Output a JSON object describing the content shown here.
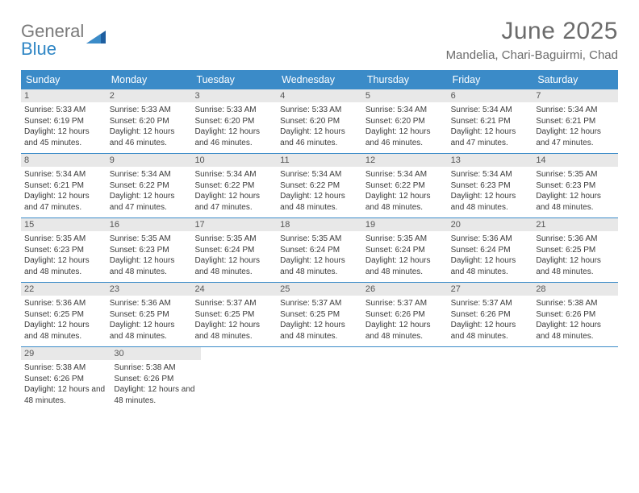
{
  "logo": {
    "general": "General",
    "blue": "Blue"
  },
  "title": "June 2025",
  "location": "Mandelia, Chari-Baguirmi, Chad",
  "dayHeaders": [
    "Sunday",
    "Monday",
    "Tuesday",
    "Wednesday",
    "Thursday",
    "Friday",
    "Saturday"
  ],
  "colors": {
    "accent": "#3b8bc8",
    "header_bg": "#3b8bc8",
    "daynum_bg": "#e8e8e8",
    "text": "#3a3a3a",
    "muted": "#6b6b6b",
    "background": "#ffffff"
  },
  "weeks": [
    [
      {
        "num": "1",
        "sunrise": "Sunrise: 5:33 AM",
        "sunset": "Sunset: 6:19 PM",
        "daylight": "Daylight: 12 hours and 45 minutes."
      },
      {
        "num": "2",
        "sunrise": "Sunrise: 5:33 AM",
        "sunset": "Sunset: 6:20 PM",
        "daylight": "Daylight: 12 hours and 46 minutes."
      },
      {
        "num": "3",
        "sunrise": "Sunrise: 5:33 AM",
        "sunset": "Sunset: 6:20 PM",
        "daylight": "Daylight: 12 hours and 46 minutes."
      },
      {
        "num": "4",
        "sunrise": "Sunrise: 5:33 AM",
        "sunset": "Sunset: 6:20 PM",
        "daylight": "Daylight: 12 hours and 46 minutes."
      },
      {
        "num": "5",
        "sunrise": "Sunrise: 5:34 AM",
        "sunset": "Sunset: 6:20 PM",
        "daylight": "Daylight: 12 hours and 46 minutes."
      },
      {
        "num": "6",
        "sunrise": "Sunrise: 5:34 AM",
        "sunset": "Sunset: 6:21 PM",
        "daylight": "Daylight: 12 hours and 47 minutes."
      },
      {
        "num": "7",
        "sunrise": "Sunrise: 5:34 AM",
        "sunset": "Sunset: 6:21 PM",
        "daylight": "Daylight: 12 hours and 47 minutes."
      }
    ],
    [
      {
        "num": "8",
        "sunrise": "Sunrise: 5:34 AM",
        "sunset": "Sunset: 6:21 PM",
        "daylight": "Daylight: 12 hours and 47 minutes."
      },
      {
        "num": "9",
        "sunrise": "Sunrise: 5:34 AM",
        "sunset": "Sunset: 6:22 PM",
        "daylight": "Daylight: 12 hours and 47 minutes."
      },
      {
        "num": "10",
        "sunrise": "Sunrise: 5:34 AM",
        "sunset": "Sunset: 6:22 PM",
        "daylight": "Daylight: 12 hours and 47 minutes."
      },
      {
        "num": "11",
        "sunrise": "Sunrise: 5:34 AM",
        "sunset": "Sunset: 6:22 PM",
        "daylight": "Daylight: 12 hours and 48 minutes."
      },
      {
        "num": "12",
        "sunrise": "Sunrise: 5:34 AM",
        "sunset": "Sunset: 6:22 PM",
        "daylight": "Daylight: 12 hours and 48 minutes."
      },
      {
        "num": "13",
        "sunrise": "Sunrise: 5:34 AM",
        "sunset": "Sunset: 6:23 PM",
        "daylight": "Daylight: 12 hours and 48 minutes."
      },
      {
        "num": "14",
        "sunrise": "Sunrise: 5:35 AM",
        "sunset": "Sunset: 6:23 PM",
        "daylight": "Daylight: 12 hours and 48 minutes."
      }
    ],
    [
      {
        "num": "15",
        "sunrise": "Sunrise: 5:35 AM",
        "sunset": "Sunset: 6:23 PM",
        "daylight": "Daylight: 12 hours and 48 minutes."
      },
      {
        "num": "16",
        "sunrise": "Sunrise: 5:35 AM",
        "sunset": "Sunset: 6:23 PM",
        "daylight": "Daylight: 12 hours and 48 minutes."
      },
      {
        "num": "17",
        "sunrise": "Sunrise: 5:35 AM",
        "sunset": "Sunset: 6:24 PM",
        "daylight": "Daylight: 12 hours and 48 minutes."
      },
      {
        "num": "18",
        "sunrise": "Sunrise: 5:35 AM",
        "sunset": "Sunset: 6:24 PM",
        "daylight": "Daylight: 12 hours and 48 minutes."
      },
      {
        "num": "19",
        "sunrise": "Sunrise: 5:35 AM",
        "sunset": "Sunset: 6:24 PM",
        "daylight": "Daylight: 12 hours and 48 minutes."
      },
      {
        "num": "20",
        "sunrise": "Sunrise: 5:36 AM",
        "sunset": "Sunset: 6:24 PM",
        "daylight": "Daylight: 12 hours and 48 minutes."
      },
      {
        "num": "21",
        "sunrise": "Sunrise: 5:36 AM",
        "sunset": "Sunset: 6:25 PM",
        "daylight": "Daylight: 12 hours and 48 minutes."
      }
    ],
    [
      {
        "num": "22",
        "sunrise": "Sunrise: 5:36 AM",
        "sunset": "Sunset: 6:25 PM",
        "daylight": "Daylight: 12 hours and 48 minutes."
      },
      {
        "num": "23",
        "sunrise": "Sunrise: 5:36 AM",
        "sunset": "Sunset: 6:25 PM",
        "daylight": "Daylight: 12 hours and 48 minutes."
      },
      {
        "num": "24",
        "sunrise": "Sunrise: 5:37 AM",
        "sunset": "Sunset: 6:25 PM",
        "daylight": "Daylight: 12 hours and 48 minutes."
      },
      {
        "num": "25",
        "sunrise": "Sunrise: 5:37 AM",
        "sunset": "Sunset: 6:25 PM",
        "daylight": "Daylight: 12 hours and 48 minutes."
      },
      {
        "num": "26",
        "sunrise": "Sunrise: 5:37 AM",
        "sunset": "Sunset: 6:26 PM",
        "daylight": "Daylight: 12 hours and 48 minutes."
      },
      {
        "num": "27",
        "sunrise": "Sunrise: 5:37 AM",
        "sunset": "Sunset: 6:26 PM",
        "daylight": "Daylight: 12 hours and 48 minutes."
      },
      {
        "num": "28",
        "sunrise": "Sunrise: 5:38 AM",
        "sunset": "Sunset: 6:26 PM",
        "daylight": "Daylight: 12 hours and 48 minutes."
      }
    ],
    [
      {
        "num": "29",
        "sunrise": "Sunrise: 5:38 AM",
        "sunset": "Sunset: 6:26 PM",
        "daylight": "Daylight: 12 hours and 48 minutes."
      },
      {
        "num": "30",
        "sunrise": "Sunrise: 5:38 AM",
        "sunset": "Sunset: 6:26 PM",
        "daylight": "Daylight: 12 hours and 48 minutes."
      },
      null,
      null,
      null,
      null,
      null
    ]
  ]
}
